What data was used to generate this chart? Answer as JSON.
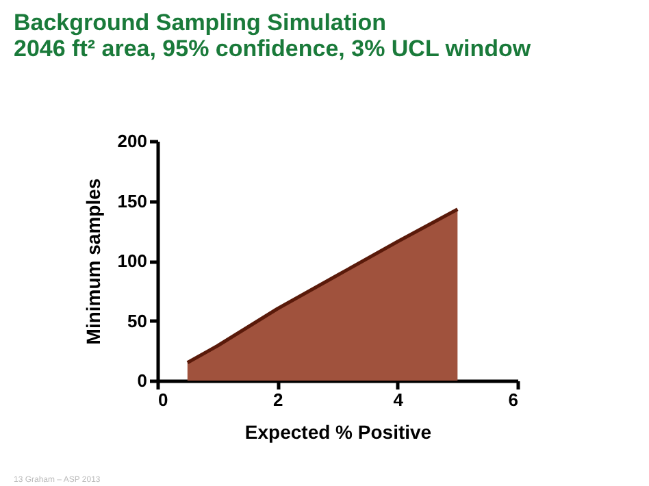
{
  "chart_data": {
    "type": "area",
    "title": "Background Sampling Simulation",
    "subtitle": "2046 ft² area, 95% confidence, 3% UCL window",
    "xlabel": "Expected % Positive",
    "ylabel": "Minimum samples",
    "x": [
      0.5,
      1,
      2,
      3,
      4,
      5
    ],
    "series": [
      {
        "color": "#a0523d",
        "values": [
          15,
          29,
          60,
          88,
          116,
          143
        ]
      }
    ],
    "xlim": [
      0,
      6
    ],
    "xticks": [
      0,
      2,
      4,
      6
    ],
    "ylim": [
      0,
      200
    ],
    "yticks": [
      0,
      50,
      100,
      150,
      200
    ],
    "grid": false,
    "annotations": [
      "13 Graham – ASP 2013"
    ]
  }
}
